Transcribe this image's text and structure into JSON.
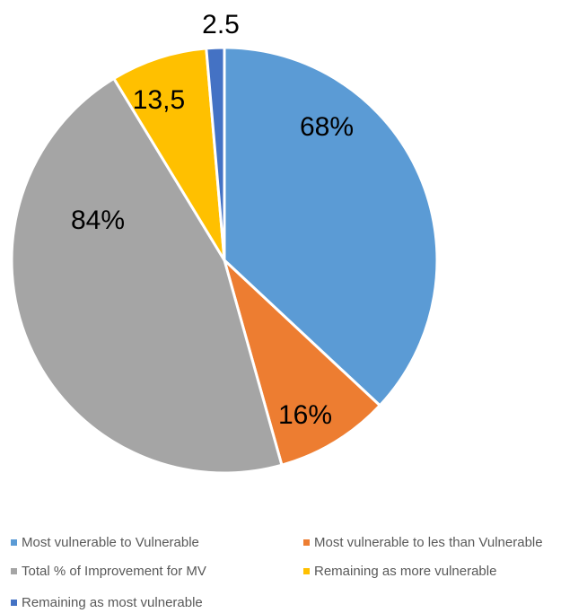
{
  "chart_data": {
    "type": "pie",
    "slices": [
      {
        "name": "Most vulnerable  to Vulnerable",
        "value": 68,
        "label": "68%",
        "color": "#5B9BD5"
      },
      {
        "name": "Most vulnerable  to les than Vulnerable",
        "value": 16,
        "label": "16%",
        "color": "#ED7D31"
      },
      {
        "name": "Total % of Improvement for MV",
        "value": 84,
        "label": "84%",
        "color": "#A5A5A5"
      },
      {
        "name": "Remaining as more vulnerable",
        "value": 13.5,
        "label": "13,5",
        "color": "#FFC000"
      },
      {
        "name": "Remaining as most vulnerable",
        "value": 2.5,
        "label": "2.5",
        "color": "#4472C4"
      }
    ],
    "legend_position": "bottom"
  }
}
